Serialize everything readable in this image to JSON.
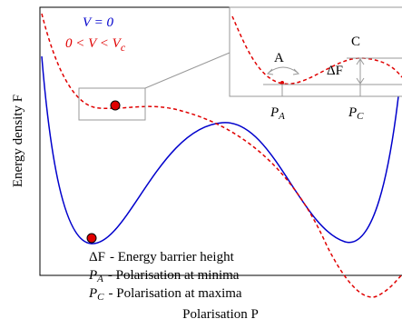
{
  "legend": {
    "blue": "V = 0",
    "red": {
      "text": "0 < V < V",
      "sub": "c"
    }
  },
  "inset": {
    "point_a": "A",
    "point_c": "C",
    "barrier": "ΔF",
    "p_a": {
      "base": "P",
      "sub": "A"
    },
    "p_c": {
      "base": "P",
      "sub": "C"
    }
  },
  "notes": [
    {
      "symbol": "ΔF",
      "text": "- Energy barrier height"
    },
    {
      "symbol": "P",
      "sub": "A",
      "text": "- Polarisation at minima"
    },
    {
      "symbol": "P",
      "sub": "C",
      "text": "- Polarisation at maxima"
    }
  ],
  "axes": {
    "x_label": "Polarisation P",
    "y_label": "Energy density F"
  }
}
